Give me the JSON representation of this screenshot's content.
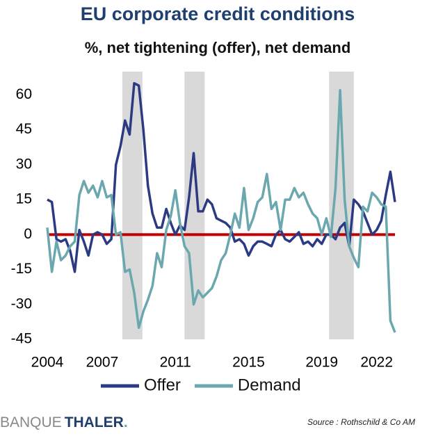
{
  "chart_data": {
    "type": "line",
    "title": "EU corporate credit conditions",
    "subtitle": "%, net tightening (offer), net demand",
    "x": [
      2004,
      2004.25,
      2004.5,
      2004.75,
      2005,
      2005.25,
      2005.5,
      2005.75,
      2006,
      2006.25,
      2006.5,
      2006.75,
      2007,
      2007.25,
      2007.5,
      2007.75,
      2008,
      2008.25,
      2008.5,
      2008.75,
      2009,
      2009.25,
      2009.5,
      2009.75,
      2010,
      2010.25,
      2010.5,
      2010.75,
      2011,
      2011.25,
      2011.5,
      2011.75,
      2012,
      2012.25,
      2012.5,
      2012.75,
      2013,
      2013.25,
      2013.5,
      2013.75,
      2014,
      2014.25,
      2014.5,
      2014.75,
      2015,
      2015.25,
      2015.5,
      2015.75,
      2016,
      2016.25,
      2016.5,
      2016.75,
      2017,
      2017.25,
      2017.5,
      2017.75,
      2018,
      2018.25,
      2018.5,
      2018.75,
      2019,
      2019.25,
      2019.5,
      2019.75,
      2020,
      2020.25,
      2020.5,
      2020.75,
      2021,
      2021.25,
      2021.5,
      2021.75,
      2022,
      2022.25,
      2022.5,
      2022.75,
      2023
    ],
    "series": [
      {
        "name": "Offer",
        "color": "#2b3a83",
        "values": [
          15,
          14,
          -2,
          -3,
          -2,
          -7,
          -16,
          2,
          -3,
          -9,
          0,
          1,
          0,
          -4,
          -2,
          30,
          38,
          49,
          43,
          65,
          64,
          45,
          21,
          9,
          3,
          3,
          11,
          5,
          0,
          4,
          2,
          16,
          35,
          10,
          10,
          15,
          13,
          7,
          6,
          5,
          3,
          -3,
          -2,
          -4,
          -9,
          -5,
          -3,
          -3,
          -4,
          -5,
          0,
          2,
          -2,
          -3,
          -1,
          1,
          -4,
          -3,
          -5,
          -2,
          -4,
          0,
          0,
          -2,
          3,
          5,
          -5,
          15,
          13,
          10,
          5,
          0,
          2,
          6,
          17,
          27,
          14
        ]
      },
      {
        "name": "Demand",
        "color": "#6ba7ae",
        "values": [
          3,
          -16,
          -3,
          -11,
          -9,
          -5,
          -3,
          17,
          23,
          18,
          21,
          16,
          23,
          16,
          17,
          0,
          1,
          -16,
          -15,
          -25,
          -40,
          -33,
          -28,
          -22,
          -8,
          -14,
          2,
          8,
          19,
          5,
          -5,
          -8,
          -30,
          -24,
          -27,
          -25,
          -23,
          -18,
          -11,
          -8,
          0,
          9,
          3,
          20,
          2,
          7,
          14,
          16,
          26,
          11,
          14,
          2,
          15,
          15,
          20,
          16,
          18,
          13,
          9,
          7,
          0,
          7,
          -1,
          20,
          62,
          15,
          -5,
          -10,
          -14,
          12,
          10,
          18,
          16,
          13,
          12,
          -37,
          -42
        ]
      }
    ],
    "shaded": [
      [
        2008.1,
        2009.2
      ],
      [
        2011.5,
        2012.6
      ],
      [
        2019.4,
        2020.75
      ]
    ],
    "shade_color": "#d9d9d9",
    "zero_line_color": "#c00000",
    "xlim": [
      2004,
      2023
    ],
    "xticks": [
      2004,
      2007,
      2011,
      2015,
      2019,
      2022
    ],
    "ylim": [
      -45,
      70
    ],
    "yticks": [
      60,
      45,
      30,
      15,
      0,
      -15,
      -30,
      -45
    ],
    "legend": "bottom"
  },
  "footer": {
    "brand1": "BANQUE",
    "brand2": "THALER",
    "brand3": ".",
    "source": "Source : Rothschild & Co AM"
  }
}
